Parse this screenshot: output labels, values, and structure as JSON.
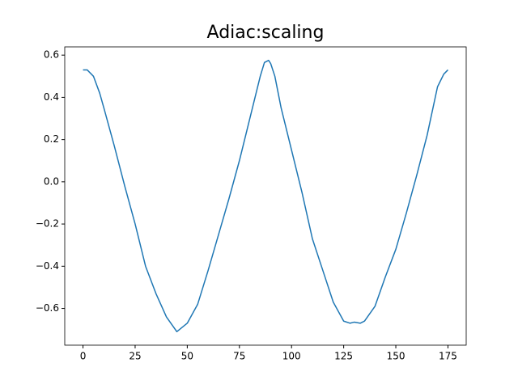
{
  "chart_data": {
    "type": "line",
    "title": "Adiac:scaling",
    "x": [
      0,
      2,
      5,
      8,
      10,
      15,
      20,
      25,
      30,
      35,
      40,
      45,
      50,
      55,
      60,
      65,
      70,
      75,
      80,
      85,
      87,
      89,
      90,
      92,
      95,
      100,
      105,
      110,
      115,
      120,
      125,
      128,
      130,
      133,
      135,
      140,
      145,
      150,
      155,
      160,
      165,
      170,
      173,
      175
    ],
    "series": [
      {
        "color": "#1f77b4",
        "values": [
          0.53,
          0.53,
          0.5,
          0.42,
          0.35,
          0.17,
          -0.02,
          -0.2,
          -0.4,
          -0.53,
          -0.64,
          -0.71,
          -0.67,
          -0.58,
          -0.42,
          -0.25,
          -0.08,
          0.1,
          0.3,
          0.5,
          0.565,
          0.575,
          0.56,
          0.5,
          0.35,
          0.15,
          -0.05,
          -0.27,
          -0.42,
          -0.57,
          -0.66,
          -0.67,
          -0.665,
          -0.67,
          -0.66,
          -0.59,
          -0.45,
          -0.32,
          -0.15,
          0.03,
          0.22,
          0.45,
          0.51,
          0.53
        ]
      }
    ],
    "xlim": [
      -8.75,
      183.75
    ],
    "ylim": [
      -0.774,
      0.639
    ],
    "xticks": [
      0,
      25,
      50,
      75,
      100,
      125,
      150,
      175
    ],
    "yticks": [
      {
        "value": -0.6,
        "label": "−0.6"
      },
      {
        "value": -0.4,
        "label": "−0.4"
      },
      {
        "value": -0.2,
        "label": "−0.2"
      },
      {
        "value": 0.0,
        "label": "0.0"
      },
      0.2,
      0.4,
      0.6
    ]
  }
}
